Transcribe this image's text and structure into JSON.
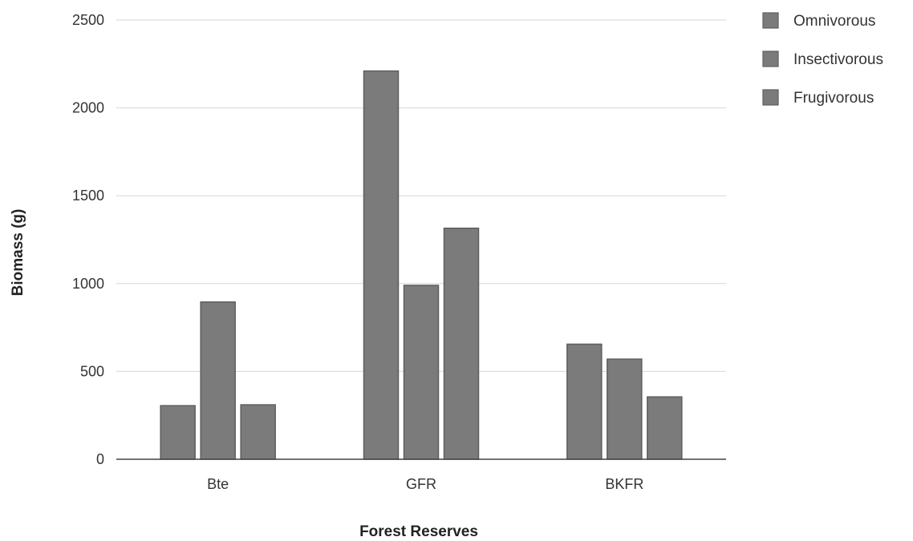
{
  "chart_data": {
    "type": "bar",
    "categories": [
      "Bte",
      "GFR",
      "BKFR"
    ],
    "series": [
      {
        "name": "Omnivorous",
        "values": [
          305,
          2210,
          655
        ]
      },
      {
        "name": "Insectivorous",
        "values": [
          895,
          990,
          570
        ]
      },
      {
        "name": "Frugivorous",
        "values": [
          310,
          1315,
          355
        ]
      }
    ],
    "title": "",
    "xlabel": "Forest Reserves",
    "ylabel": "Biomass (g)",
    "ylim": [
      0,
      2500
    ],
    "yticks": [
      0,
      500,
      1000,
      1500,
      2000,
      2500
    ],
    "grid": true,
    "legend": "top-right",
    "colors": {
      "bar": "#7b7b7b",
      "bar_stroke": "#5e5e5e",
      "grid": "#d6d6d6",
      "axis": "#444444"
    }
  }
}
